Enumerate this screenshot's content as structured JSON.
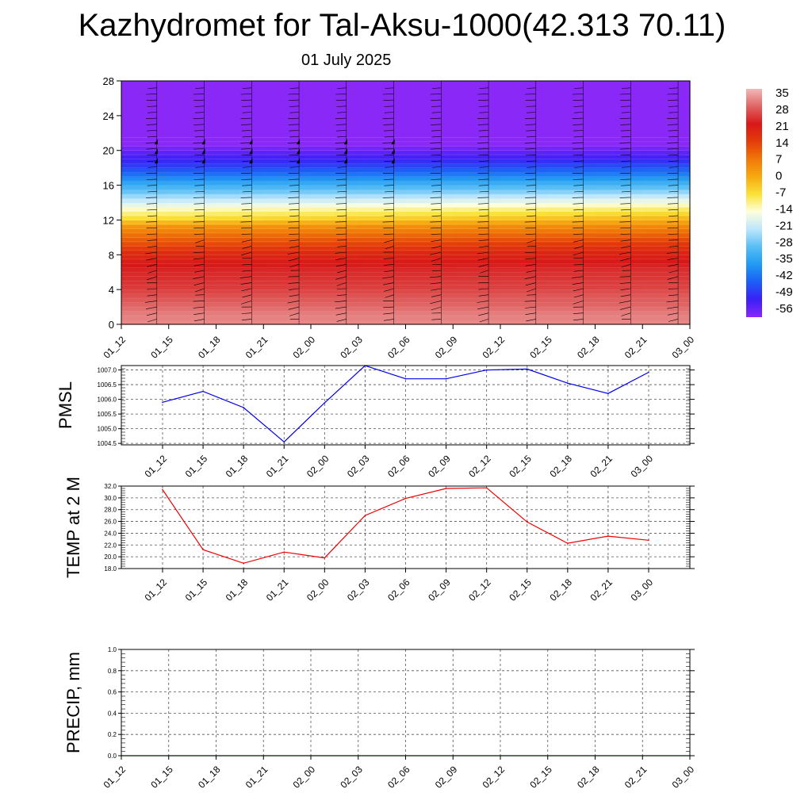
{
  "title": "Kazhydromet for Tal-Aksu-1000(42.313 70.11)",
  "subtitle": "01 July 2025",
  "colors": {
    "pmsl_line": "#0000ee",
    "temp_line": "#ee0000",
    "precip_line": "#008800",
    "grid": "#555555",
    "wind_barb": "#000000"
  },
  "chart_data": [
    {
      "type": "heatmap",
      "name": "temperature-height-section",
      "title": "",
      "xlabel": "",
      "ylabel": "",
      "x_ticks": [
        "01_12",
        "01_15",
        "01_18",
        "01_21",
        "02_00",
        "02_03",
        "02_06",
        "02_09",
        "02_12",
        "02_15",
        "02_18",
        "02_21",
        "03_00"
      ],
      "y_ticks": [
        0,
        4,
        8,
        12,
        16,
        20,
        24,
        28
      ],
      "ylim": [
        0,
        28
      ],
      "values_by_height": {
        "heights": [
          0,
          1,
          2,
          3,
          4,
          5,
          6,
          7,
          8,
          9,
          10,
          11,
          12,
          13,
          14,
          15,
          16,
          17,
          18,
          19,
          20,
          21,
          22,
          23,
          24,
          25,
          26,
          27,
          28
        ],
        "temp_left": [
          31,
          30,
          28,
          26,
          24,
          23,
          22,
          20,
          17,
          12,
          8,
          3,
          -7,
          -13,
          -20,
          -27,
          -33,
          -40,
          -46,
          -50,
          -54,
          -58,
          -60,
          -60,
          -60,
          -60,
          -60,
          -60,
          -60
        ],
        "temp_right": [
          31,
          30,
          28,
          27,
          25,
          24,
          23,
          21,
          19,
          15,
          10,
          5,
          -2,
          -9,
          -16,
          -24,
          -31,
          -38,
          -44,
          -50,
          -54,
          -58,
          -60,
          -60,
          -60,
          -60,
          -60,
          -60,
          -60
        ]
      },
      "colorbar": {
        "labels": [
          "35",
          "28",
          "21",
          "14",
          "7",
          "0",
          "-7",
          "-14",
          "-21",
          "-28",
          "-35",
          "-42",
          "-49",
          "-56"
        ],
        "colors": [
          "#f2b8b8",
          "#e06464",
          "#d81818",
          "#e43c0a",
          "#f07808",
          "#f6aa10",
          "#fae23a",
          "#fefedc",
          "#bde6fe",
          "#58bef4",
          "#209af2",
          "#1c5ef6",
          "#3a20f6",
          "#8a28f8"
        ]
      },
      "wind_barbs": "present (black barbs at every 3-hour column)"
    },
    {
      "type": "line",
      "name": "pmsl",
      "ylabel": "PMSL",
      "categories": [
        "01_12",
        "01_15",
        "01_18",
        "01_21",
        "02_00",
        "02_03",
        "02_06",
        "02_09",
        "02_12",
        "02_15",
        "02_18",
        "02_21",
        "03_00"
      ],
      "values": [
        1005.9,
        1006.27,
        1005.72,
        1004.55,
        1005.88,
        1007.15,
        1006.7,
        1006.7,
        1007.0,
        1007.03,
        1006.55,
        1006.2,
        1006.92
      ],
      "yticks": [
        "1004.5",
        "1005.0",
        "1005.5",
        "1006.0",
        "1006.5",
        "1007.0"
      ],
      "ylim": [
        1004.45,
        1007.15
      ],
      "grid": true
    },
    {
      "type": "line",
      "name": "temp-2m",
      "ylabel": "TEMP at 2 M",
      "categories": [
        "01_12",
        "01_15",
        "01_18",
        "01_21",
        "02_00",
        "02_03",
        "02_06",
        "02_09",
        "02_12",
        "02_15",
        "02_18",
        "02_21",
        "03_00"
      ],
      "values": [
        31.4,
        21.2,
        18.9,
        20.8,
        19.8,
        27.0,
        29.9,
        31.6,
        31.7,
        25.9,
        22.3,
        23.5,
        22.8
      ],
      "yticks": [
        "18.0",
        "20.0",
        "22.0",
        "24.0",
        "26.0",
        "28.0",
        "30.0",
        "32.0"
      ],
      "ylim": [
        18,
        32
      ],
      "grid": true
    },
    {
      "type": "line",
      "name": "precip",
      "ylabel": "PRECIP, mm",
      "categories": [
        "01_12",
        "01_15",
        "01_18",
        "01_21",
        "02_00",
        "02_03",
        "02_06",
        "02_09",
        "02_12",
        "02_15",
        "02_18",
        "02_21",
        "03_00"
      ],
      "values": [
        0,
        0,
        0,
        0,
        0,
        0,
        0,
        0,
        0,
        0,
        0,
        0,
        0
      ],
      "yticks": [
        "0.0",
        "0.2",
        "0.4",
        "0.6",
        "0.8",
        "1.0"
      ],
      "ylim": [
        0,
        1
      ],
      "grid": true
    }
  ]
}
